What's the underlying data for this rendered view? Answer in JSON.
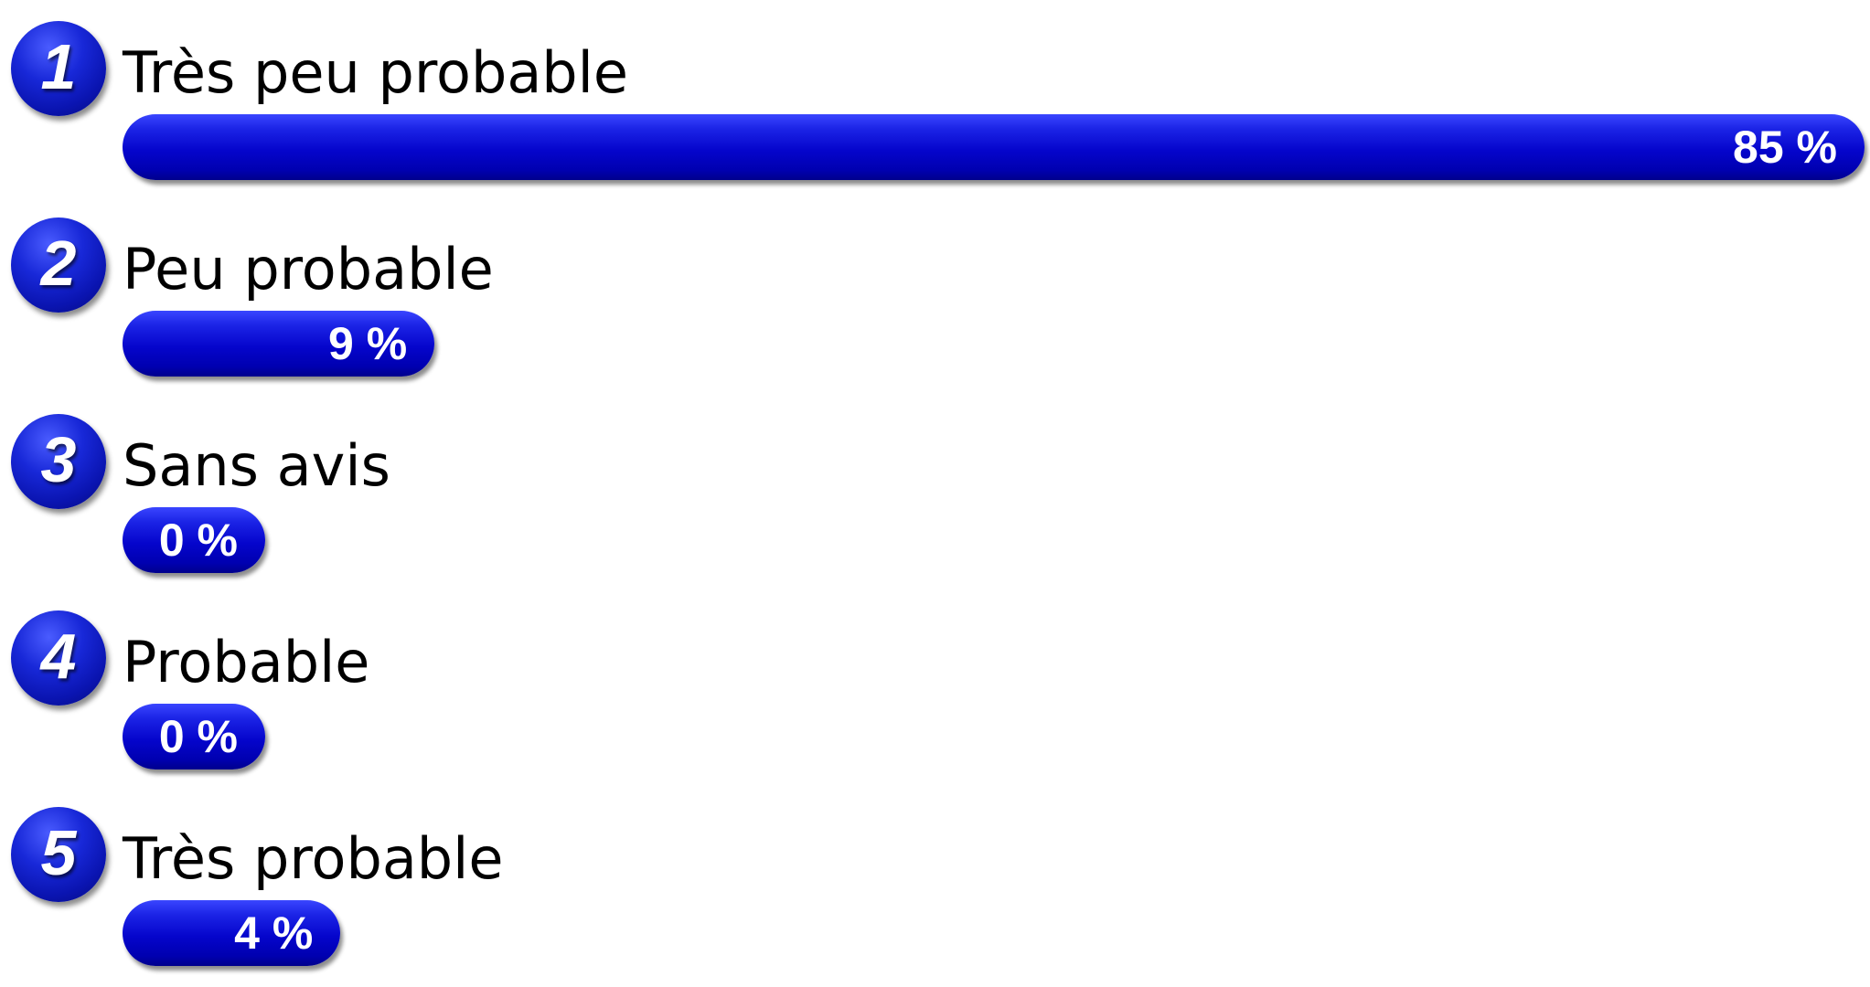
{
  "chart_data": {
    "type": "bar",
    "orientation": "horizontal",
    "categories": [
      "Très peu probable",
      "Peu probable",
      "Sans avis",
      "Probable",
      "Très probable"
    ],
    "values": [
      85,
      9,
      0,
      0,
      4
    ],
    "value_labels": [
      "85 %",
      "9 %",
      "0 %",
      "0 %",
      "4 %"
    ],
    "item_numbers": [
      "1",
      "2",
      "3",
      "4",
      "5"
    ],
    "xlim": [
      0,
      85
    ],
    "grid": false,
    "legend": "none"
  },
  "colors": {
    "bar": "#0505cc",
    "badge": "#1828d8",
    "value_text": "#ffffff",
    "label_text": "#000000"
  }
}
